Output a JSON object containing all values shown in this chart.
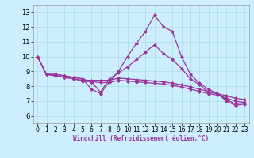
{
  "xlabel": "Windchill (Refroidissement éolien,°C)",
  "background_color": "#cceeff",
  "grid_color": "#aadddd",
  "line_color": "#993399",
  "marker": "D",
  "markersize": 2.0,
  "linewidth": 0.9,
  "xlim": [
    -0.5,
    23.5
  ],
  "ylim": [
    5.5,
    13.5
  ],
  "yticks": [
    6,
    7,
    8,
    9,
    10,
    11,
    12,
    13
  ],
  "xticks": [
    0,
    1,
    2,
    3,
    4,
    5,
    6,
    7,
    8,
    9,
    10,
    11,
    12,
    13,
    14,
    15,
    16,
    17,
    18,
    19,
    20,
    21,
    22,
    23
  ],
  "lines": [
    [
      10.0,
      8.8,
      8.8,
      8.7,
      8.6,
      8.5,
      7.8,
      7.5,
      8.3,
      9.0,
      10.0,
      10.9,
      11.7,
      12.8,
      12.0,
      11.7,
      10.0,
      8.8,
      8.2,
      7.8,
      7.5,
      7.1,
      6.8,
      6.9
    ],
    [
      10.0,
      8.8,
      8.8,
      8.7,
      8.6,
      8.5,
      8.3,
      7.6,
      8.5,
      8.9,
      9.3,
      9.8,
      10.3,
      10.8,
      10.2,
      9.8,
      9.2,
      8.5,
      8.1,
      7.6,
      7.5,
      7.0,
      6.7,
      6.8
    ],
    [
      10.0,
      8.8,
      8.7,
      8.6,
      8.5,
      8.4,
      8.4,
      8.4,
      8.4,
      8.55,
      8.5,
      8.45,
      8.4,
      8.35,
      8.3,
      8.2,
      8.1,
      7.95,
      7.8,
      7.65,
      7.5,
      7.35,
      7.2,
      7.1
    ],
    [
      10.0,
      8.8,
      8.7,
      8.6,
      8.5,
      8.35,
      8.3,
      8.25,
      8.25,
      8.4,
      8.35,
      8.3,
      8.25,
      8.2,
      8.15,
      8.05,
      7.95,
      7.8,
      7.65,
      7.5,
      7.4,
      7.2,
      7.0,
      6.9
    ]
  ]
}
